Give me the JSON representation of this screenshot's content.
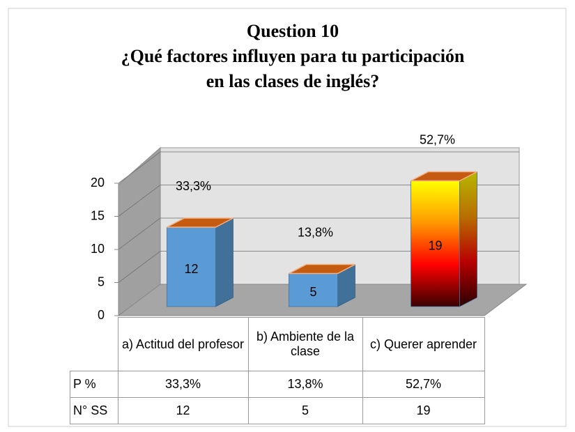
{
  "chart_data": {
    "type": "bar3d",
    "title": [
      "Question 10",
      "¿Qué factores influyen para tu participación",
      "en las clases de inglés?"
    ],
    "categories": [
      "a) Actitud del profesor",
      "b) Ambiente de la clase",
      "c) Querer aprender"
    ],
    "series": [
      {
        "name": "P %",
        "values": [
          33.3,
          13.8,
          52.7
        ],
        "value_labels": [
          "33,3%",
          "13,8%",
          "52,7%"
        ]
      },
      {
        "name": "N° SS",
        "values": [
          12,
          5,
          19
        ],
        "colors": [
          "#5b9bd5",
          "#5b9bd5",
          [
            "#ffff00",
            "#ff9900",
            "#ff0000",
            "#3a0000"
          ]
        ],
        "top_color": "#c55a11"
      }
    ],
    "ylim": [
      0,
      20
    ],
    "yticks": [
      0,
      5,
      10,
      15,
      20
    ],
    "grid": true
  }
}
